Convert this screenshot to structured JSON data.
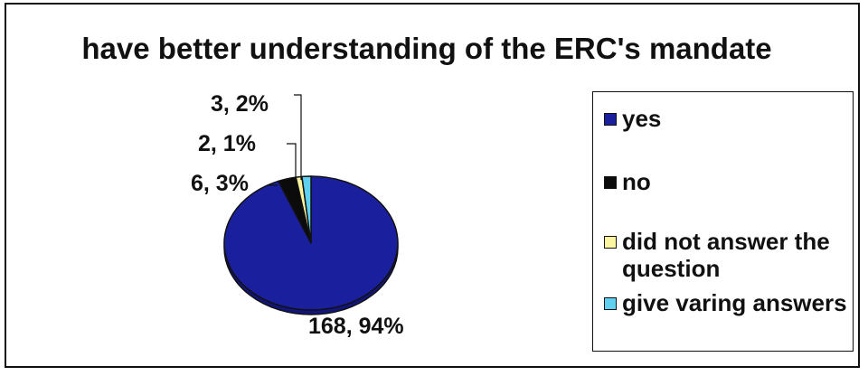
{
  "chart_data": {
    "type": "pie",
    "title": "have better understanding of the ERC's mandate",
    "categories": [
      "yes",
      "no",
      "did not answer the question",
      "give varing answers"
    ],
    "values": [
      168,
      6,
      2,
      3
    ],
    "percent_labels": [
      "94%",
      "3%",
      "1%",
      "2%"
    ],
    "data_labels": [
      "168, 94%",
      "6, 3%",
      "2, 1%",
      "3, 2%"
    ],
    "colors": [
      "#1a1f9e",
      "#0b0b0b",
      "#fbf5a0",
      "#5fd0f0"
    ],
    "legend_position": "right"
  }
}
